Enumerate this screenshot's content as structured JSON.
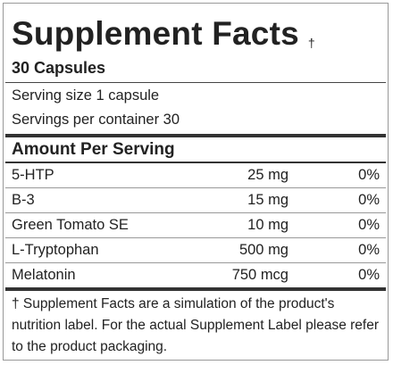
{
  "title": "Supplement Facts",
  "title_mark": "†",
  "subtitle": "30 Capsules",
  "serving_size": "Serving size 1 capsule",
  "servings_per_container": "Servings per container 30",
  "table": {
    "header": "Amount Per Serving",
    "rows": [
      [
        "5-HTP",
        "25 mg",
        "0%"
      ],
      [
        "B-3",
        "15 mg",
        "0%"
      ],
      [
        "Green Tomato SE",
        "10 mg",
        "0%"
      ],
      [
        "L-Tryptophan",
        "500 mg",
        "0%"
      ],
      [
        "Melatonin",
        "750 mcg",
        "0%"
      ]
    ]
  },
  "footnote": "† Supplement Facts are a simulation of the product's nutrition label. For the actual Supplement Label please refer to the product packaging."
}
